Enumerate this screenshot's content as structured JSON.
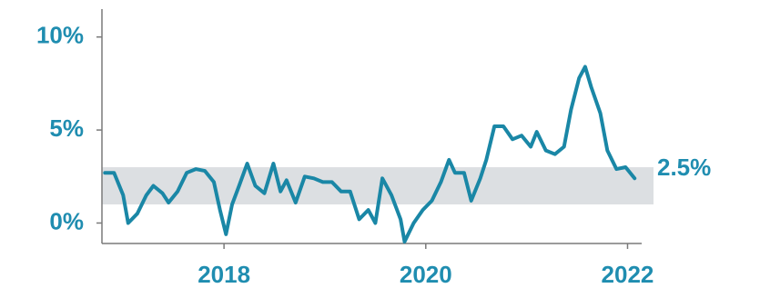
{
  "chart_data": {
    "type": "line",
    "series": [
      {
        "name": null,
        "color": "#1a87a6",
        "x": [
          2016.82,
          2016.91,
          2017.0,
          2017.05,
          2017.14,
          2017.23,
          2017.3,
          2017.39,
          2017.45,
          2017.54,
          2017.63,
          2017.72,
          2017.81,
          2017.9,
          2017.96,
          2018.02,
          2018.08,
          2018.15,
          2018.23,
          2018.31,
          2018.4,
          2018.49,
          2018.56,
          2018.62,
          2018.71,
          2018.8,
          2018.89,
          2018.98,
          2019.07,
          2019.16,
          2019.25,
          2019.34,
          2019.43,
          2019.5,
          2019.57,
          2019.66,
          2019.75,
          2019.79,
          2019.88,
          2019.97,
          2020.06,
          2020.15,
          2020.23,
          2020.29,
          2020.38,
          2020.45,
          2020.54,
          2020.6,
          2020.68,
          2020.77,
          2020.86,
          2020.95,
          2021.04,
          2021.1,
          2021.19,
          2021.28,
          2021.37,
          2021.44,
          2021.52,
          2021.58,
          2021.64,
          2021.73,
          2021.8,
          2021.89,
          2021.98,
          2022.07
        ],
        "values": [
          2.7,
          2.7,
          1.5,
          0,
          0.5,
          1.5,
          2.0,
          1.6,
          1.1,
          1.7,
          2.7,
          2.9,
          2.8,
          2.2,
          0.7,
          -0.6,
          1.0,
          2.0,
          3.2,
          2.0,
          1.6,
          3.2,
          1.7,
          2.3,
          1.1,
          2.5,
          2.4,
          2.2,
          2.2,
          1.7,
          1.7,
          0.2,
          0.7,
          0,
          2.4,
          1.5,
          0.2,
          -1.0,
          0,
          0.7,
          1.2,
          2.2,
          3.4,
          2.7,
          2.7,
          1.2,
          2.4,
          3.4,
          5.2,
          5.2,
          4.5,
          4.7,
          4.1,
          4.9,
          3.9,
          3.7,
          4.1,
          6.1,
          7.8,
          8.4,
          7.3,
          5.9,
          3.9,
          2.9,
          3.0,
          2.4
        ]
      }
    ],
    "band": [
      1,
      3
    ],
    "band_color": "#dcdfe2",
    "annotation": "2.5%",
    "xlim": [
      2016.79,
      2022.14
    ],
    "xticks": [
      2018,
      2020,
      2022
    ],
    "ylim": [
      -1.1,
      11.5
    ],
    "yticks": [
      {
        "value": 0,
        "label": "0%"
      },
      {
        "value": 5,
        "label": "5%"
      },
      {
        "value": 10,
        "label": "10%"
      }
    ]
  }
}
